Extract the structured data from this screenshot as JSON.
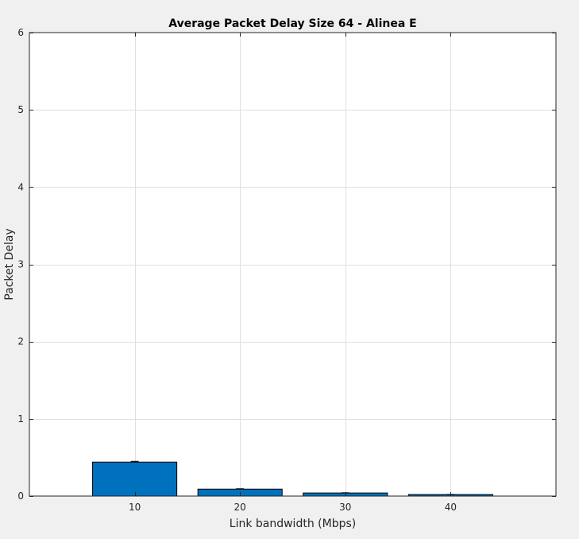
{
  "chart_data": {
    "type": "bar",
    "title": "Average Packet Delay Size 64 - Alinea E",
    "xlabel": "Link bandwidth (Mbps)",
    "ylabel": "Packet Delay",
    "categories": [
      "10",
      "20",
      "30",
      "40"
    ],
    "x": [
      10,
      20,
      30,
      40
    ],
    "values": [
      0.44,
      0.09,
      0.04,
      0.02
    ],
    "errors": [
      0.01,
      0.005,
      0.003,
      0.002
    ],
    "xlim": [
      0,
      50
    ],
    "ylim": [
      0,
      6
    ],
    "yticks": [
      0,
      1,
      2,
      3,
      4,
      5,
      6
    ],
    "ytick_labels": [
      "0",
      "1",
      "2",
      "3",
      "4",
      "5",
      "6"
    ],
    "grid": true,
    "colors": {
      "bar_fill": "#0072bd",
      "bar_edge": "#000000",
      "plot_background": "#ffffff",
      "figure_background": "#f0f0f0",
      "grid": "#dfdfdf",
      "axis": "#262626"
    }
  }
}
